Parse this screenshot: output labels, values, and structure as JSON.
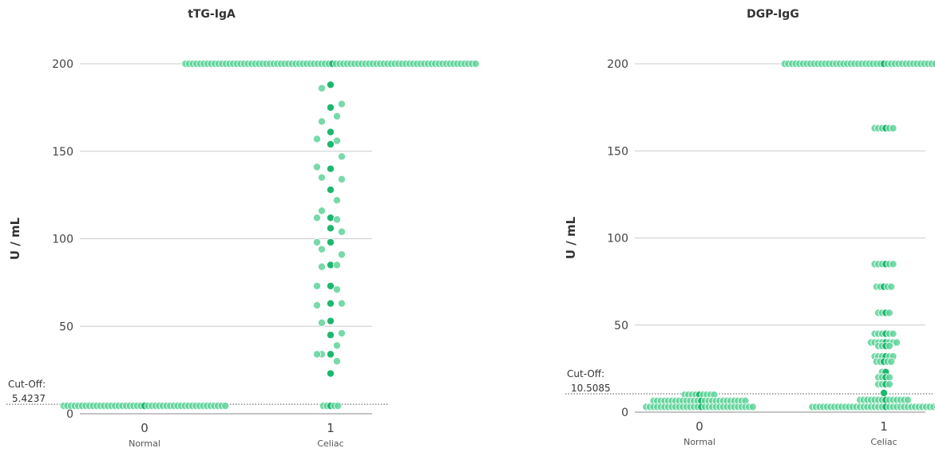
{
  "chart_data": [
    {
      "type": "scatter",
      "subtype": "beeswarm",
      "title": "tTG-IgA",
      "ylabel": "U / mL",
      "ylim": [
        0,
        200
      ],
      "yticks": [
        0,
        50,
        100,
        150,
        200
      ],
      "grid": true,
      "categories": [
        {
          "value": "0",
          "label": "Normal"
        },
        {
          "value": "1",
          "label": "Celiac"
        }
      ],
      "cutoff": {
        "label": "Cut-Off:",
        "value": "5.4237"
      },
      "points": [
        {
          "group": "0",
          "y": 4.5,
          "count": 45
        },
        {
          "group": "1",
          "y": 200,
          "count": 80
        },
        {
          "group": "1",
          "y": 4.5,
          "count": 5
        },
        {
          "group": "1",
          "values": [
            188,
            186,
            177,
            175,
            170,
            167,
            161,
            157,
            156,
            154,
            147,
            141,
            140,
            135,
            134,
            128,
            122,
            116,
            112,
            112,
            111,
            106,
            104,
            98,
            98,
            94,
            91,
            85,
            85,
            84,
            73,
            73,
            71,
            63,
            63,
            62,
            53,
            52,
            46,
            45,
            39,
            34,
            34,
            34,
            30,
            23
          ]
        }
      ]
    },
    {
      "type": "scatter",
      "subtype": "beeswarm",
      "title": "DGP-IgG",
      "ylabel": "U / mL",
      "ylim": [
        0,
        200
      ],
      "yticks": [
        0,
        50,
        100,
        150,
        200
      ],
      "grid": true,
      "categories": [
        {
          "value": "0",
          "label": "Normal"
        },
        {
          "value": "1",
          "label": "Celiac"
        }
      ],
      "cutoff": {
        "label": "Cut-Off:",
        "value": "10.5085"
      },
      "points": [
        {
          "group": "0",
          "y": 10,
          "count": 9
        },
        {
          "group": "0",
          "y": 6.5,
          "count": 26
        },
        {
          "group": "0",
          "y": 3,
          "count": 30
        },
        {
          "group": "1",
          "y": 200,
          "count": 55
        },
        {
          "group": "1",
          "y": 163,
          "count": 6
        },
        {
          "group": "1",
          "y": 85,
          "count": 6
        },
        {
          "group": "1",
          "y": 72,
          "count": 5
        },
        {
          "group": "1",
          "y": 57,
          "count": 4
        },
        {
          "group": "1",
          "y": 45,
          "count": 6
        },
        {
          "group": "1",
          "y": 40,
          "count": 8
        },
        {
          "group": "1",
          "y": 38,
          "count": 4
        },
        {
          "group": "1",
          "y": 32,
          "count": 6
        },
        {
          "group": "1",
          "y": 29,
          "count": 5
        },
        {
          "group": "1",
          "y": 23,
          "count": 2
        },
        {
          "group": "1",
          "y": 20,
          "count": 4
        },
        {
          "group": "1",
          "y": 16,
          "count": 4
        },
        {
          "group": "1",
          "y": 11,
          "count": 1
        },
        {
          "group": "1",
          "y": 7,
          "count": 14
        },
        {
          "group": "1",
          "y": 3,
          "count": 40
        }
      ]
    }
  ],
  "colors": {
    "point_light": "#5fd49a",
    "point_dark": "#1db86e",
    "point_stroke": "#ffffff",
    "grid": "#cccccc",
    "axis": "#888888",
    "cutoff_line": "#555555"
  }
}
